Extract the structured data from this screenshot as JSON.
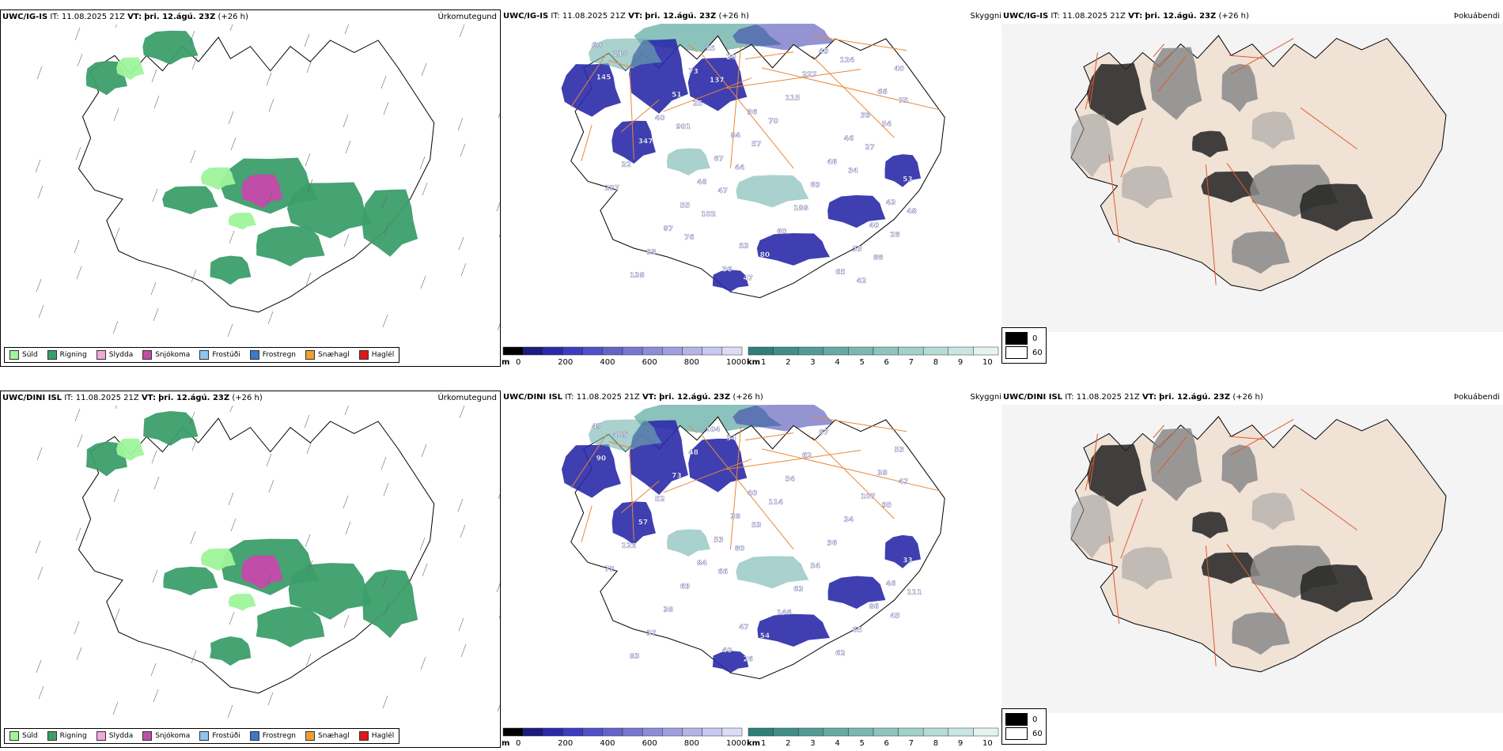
{
  "rows": [
    {
      "model": "UWC/IG-IS",
      "it_prefix": "IT:",
      "it_time": "11.08.2025 21Z",
      "vt_prefix": "VT:",
      "vt_time": "þri. 12.ágú. 23Z",
      "lead": "(+26 h)",
      "precip_title": "Úrkomutegund",
      "visibility_title": "Skyggni",
      "fog_title": "Þokuábendi",
      "labels": [
        "60",
        "36",
        "53",
        "53",
        "40",
        "84",
        "43",
        "36",
        "66",
        "67",
        "40",
        "55",
        "39",
        "48",
        "53",
        "73",
        "46",
        "55",
        "65",
        "51",
        "46",
        "87",
        "49",
        "40",
        "69",
        "93",
        "227",
        "347",
        "188",
        "138",
        "115",
        "22",
        "60",
        "118",
        "70",
        "227",
        "80",
        "145",
        "57",
        "48",
        "47",
        "75",
        "44",
        "28",
        "29",
        "54",
        "47",
        "88",
        "137",
        "27",
        "102",
        "42",
        "25",
        "34",
        "76",
        "124",
        "901"
      ]
    },
    {
      "model": "UWC/DINI ISL",
      "it_prefix": "IT:",
      "it_time": "11.08.2025 21Z",
      "vt_prefix": "VT:",
      "vt_time": "þri. 12.ágú. 23Z",
      "lead": "(+26 h)",
      "precip_title": "Úrkomutegund",
      "visibility_title": "Skyggni",
      "fog_title": "Þokuábendi",
      "labels": [
        "47",
        "40",
        "33",
        "47",
        "53",
        "38",
        "46",
        "40",
        "38",
        "53",
        "86",
        "104",
        "107",
        "84",
        "65",
        "48",
        "34",
        "69",
        "62",
        "73",
        "36",
        "38",
        "67",
        "52",
        "54",
        "37",
        "62",
        "57",
        "63",
        "83",
        "54",
        "122",
        "146",
        "405",
        "114",
        "72",
        "54",
        "90",
        "53",
        "111",
        "26",
        "47",
        "80",
        "45",
        "34",
        "95",
        "66"
      ]
    }
  ],
  "precip_legend": [
    {
      "label": "Súld",
      "color": "#9ef59a"
    },
    {
      "label": "Rigning",
      "color": "#3c9e6a"
    },
    {
      "label": "Slydda",
      "color": "#f0a8d8"
    },
    {
      "label": "Snjókoma",
      "color": "#c04ea8"
    },
    {
      "label": "Frostúði",
      "color": "#8ec4f0"
    },
    {
      "label": "Frostregn",
      "color": "#3a7ac8"
    },
    {
      "label": "Snæhagl",
      "color": "#f0a030"
    },
    {
      "label": "Haglél",
      "color": "#e01818"
    }
  ],
  "ceiling_bar": {
    "unit": "m",
    "ticks": [
      "0",
      "200",
      "400",
      "600",
      "800",
      "1000"
    ],
    "colors": [
      "#000000",
      "#1a1a80",
      "#2a2aa8",
      "#3c3cc0",
      "#5050c8",
      "#6464c8",
      "#7878d0",
      "#8c8cd8",
      "#a0a0e0",
      "#b4b4e8",
      "#c8c8f0",
      "#dcdcf4"
    ]
  },
  "visibility_bar": {
    "unit": "km",
    "ticks": [
      "1",
      "2",
      "3",
      "4",
      "5",
      "6",
      "7",
      "8",
      "9",
      "10"
    ],
    "colors": [
      "#2e7f78",
      "#3f8f88",
      "#529c95",
      "#66aaa3",
      "#7ab8b1",
      "#8ec4bd",
      "#a2d0ca",
      "#b6dcd6",
      "#cae6e2",
      "#e4f2f0"
    ]
  },
  "fog_legend": [
    {
      "value": "0",
      "color": "#000000"
    },
    {
      "value": "60",
      "color": "#ffffff"
    }
  ],
  "colors": {
    "rain": "#3c9e6a",
    "drizzle": "#9ef59a",
    "snow": "#c04ea8",
    "cloud": "#2a2aa8",
    "vis": "#6fb3ab",
    "road": "#e8883a",
    "highland": "#f1e2d6",
    "fogdark": "#222222",
    "fogmid": "#8a8a8a"
  }
}
